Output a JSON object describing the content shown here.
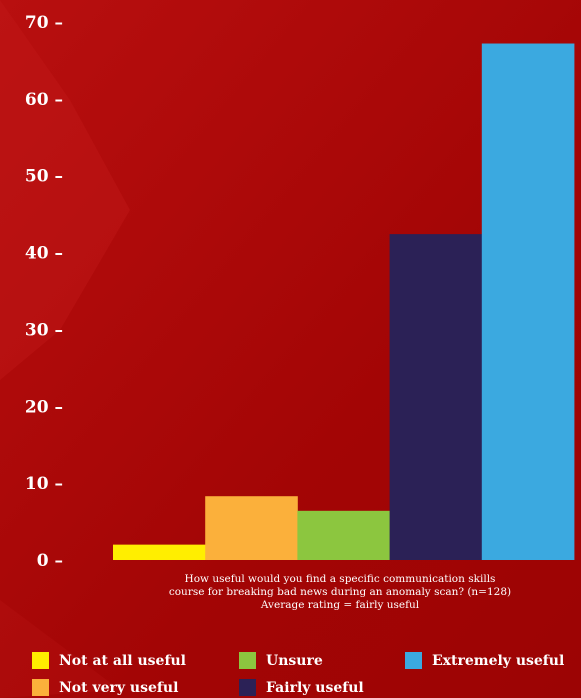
{
  "chart_data": {
    "type": "bar",
    "categories": [
      "Not at all useful",
      "Not very useful",
      "Unsure",
      "Fairly useful",
      "Extremely useful"
    ],
    "values": [
      2,
      8.3,
      6.4,
      42.4,
      67.2
    ],
    "colors": [
      "#ffee00",
      "#fbb03b",
      "#8cc63f",
      "#2b2156",
      "#3ba9e0"
    ],
    "ylim": [
      0,
      70
    ],
    "yticks": [
      0,
      10,
      20,
      30,
      40,
      50,
      60,
      70
    ],
    "ytick_labels": [
      "0 –",
      "10 –",
      "20 –",
      "30 –",
      "40 –",
      "50 –",
      "60 –",
      "70 –"
    ],
    "caption": [
      "How useful would you find a specific communication skills",
      "course for breaking bad news during an anomaly scan? (n=128)",
      "Average rating = fairly useful"
    ],
    "legend": [
      "Not at all useful",
      "Not very useful",
      "Unsure",
      "Fairly useful",
      "Extremely useful"
    ],
    "legend_position": "bottom",
    "grid": false
  },
  "colors": {
    "background": "#a80606",
    "text": "#ffffff"
  }
}
